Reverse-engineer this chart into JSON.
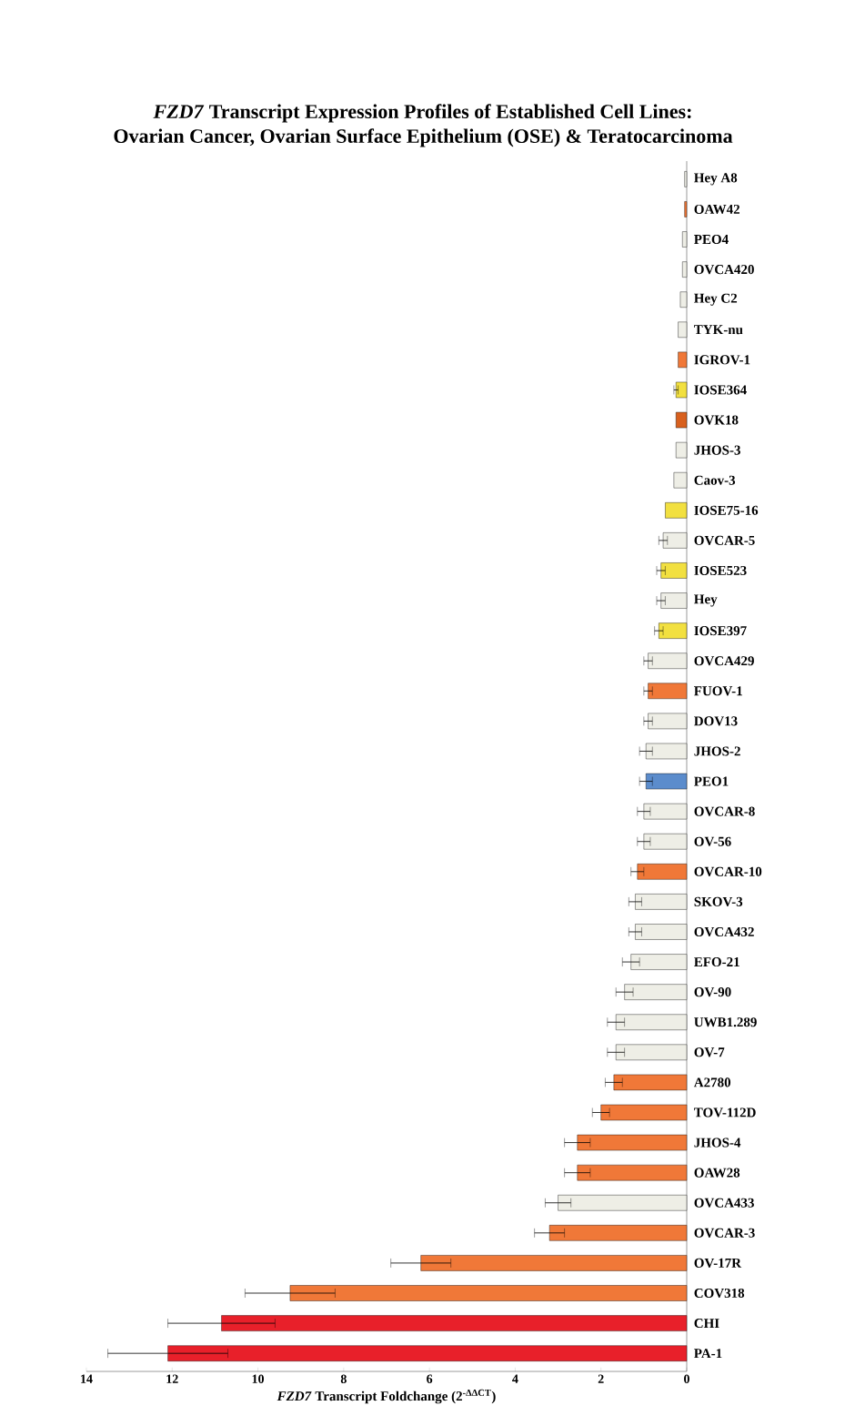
{
  "chart_data": {
    "type": "bar",
    "orientation": "horizontal",
    "title": "*FZD7* Transcript Expression Profiles of Established Cell Lines:",
    "subtitle": "Ovarian Cancer, Ovarian Surface Epithelium (OSE) & Teratocarcinoma",
    "xlabel": "*FZD7* Transcript Foldchange (2$^{-ΔΔCT}$)",
    "categories": [
      "Hey A8",
      "OAW42",
      "PEO4",
      "OVCA420",
      "Hey C2",
      "TYK-nu",
      "IGROV-1",
      "IOSE364",
      "OVK18",
      "JHOS-3",
      "Caov-3",
      "IOSE75-16",
      "OVCAR-5",
      "IOSE523",
      "Hey",
      "IOSE397",
      "OVCA429",
      "FUOV-1",
      "DOV13",
      "JHOS-2",
      "PEO1",
      "OVCAR-8",
      "OV-56",
      "OVCAR-10",
      "SKOV-3",
      "OVCA432",
      "EFO-21",
      "OV-90",
      "UWB1.289",
      "OV-7",
      "A2780",
      "TOV-112D",
      "JHOS-4",
      "OAW28",
      "OVCA433",
      "OVCAR-3",
      "OV-17R",
      "COV318",
      "CHI",
      "PA-1"
    ],
    "values": [
      0.05,
      0.05,
      0.1,
      0.1,
      0.15,
      0.2,
      0.2,
      0.25,
      0.25,
      0.25,
      0.3,
      0.5,
      0.55,
      0.6,
      0.6,
      0.65,
      0.9,
      0.9,
      0.9,
      0.95,
      0.95,
      1.0,
      1.0,
      1.15,
      1.2,
      1.2,
      1.3,
      1.45,
      1.65,
      1.65,
      1.7,
      2.0,
      2.55,
      2.55,
      3.0,
      3.2,
      6.2,
      9.25,
      10.85,
      12.1
    ],
    "errors": [
      null,
      null,
      null,
      null,
      null,
      null,
      null,
      0.05,
      null,
      null,
      null,
      null,
      0.1,
      0.1,
      0.1,
      0.1,
      0.1,
      0.1,
      0.1,
      0.15,
      0.15,
      0.15,
      0.15,
      0.15,
      0.15,
      0.15,
      0.2,
      0.2,
      0.2,
      0.2,
      0.2,
      0.2,
      0.3,
      0.3,
      0.3,
      0.35,
      0.7,
      1.05,
      1.25,
      1.4
    ],
    "colors": [
      "#eeeee6",
      "#f07838",
      "#eeeee6",
      "#eeeee6",
      "#eeeee6",
      "#eeeee6",
      "#f07838",
      "#f2e040",
      "#d8601e",
      "#eeeee6",
      "#eeeee6",
      "#f2e040",
      "#eeeee6",
      "#f2e040",
      "#eeeee6",
      "#f2e040",
      "#eeeee6",
      "#f07838",
      "#eeeee6",
      "#eeeee6",
      "#5b8ccc",
      "#eeeee6",
      "#eeeee6",
      "#f07838",
      "#eeeee6",
      "#eeeee6",
      "#eeeee6",
      "#eeeee6",
      "#eeeee6",
      "#eeeee6",
      "#f07838",
      "#f07838",
      "#f07838",
      "#f07838",
      "#eeeee6",
      "#f07838",
      "#f07838",
      "#f07838",
      "#e8202a",
      "#e8202a"
    ],
    "xlim": [
      14,
      0
    ],
    "xticks": [
      14,
      12,
      10,
      8,
      6,
      4,
      2,
      0
    ],
    "grid": false
  }
}
